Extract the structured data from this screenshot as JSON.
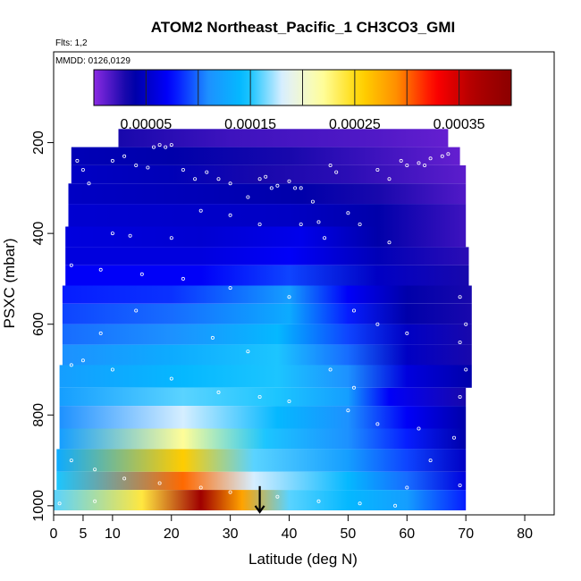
{
  "chart_data": {
    "type": "heatmap",
    "title": "ATOM2 Northeast_Pacific_1 CH3CO3_GMI",
    "flts_label": "Flts: 1,2",
    "mmdd_label": "MMDD: 0126,0129",
    "xlabel": "Latitude (deg N)",
    "ylabel": "PSXC (mbar)",
    "xlim": [
      0,
      85
    ],
    "ylim": [
      1020,
      0
    ],
    "x_ticks": [
      0,
      5,
      10,
      20,
      30,
      40,
      50,
      60,
      70,
      80
    ],
    "x_tick_labels": [
      "0",
      "5",
      "10",
      "20",
      "30",
      "40",
      "50",
      "60",
      "70",
      "80"
    ],
    "y_ticks": [
      200,
      400,
      600,
      800,
      1000
    ],
    "y_tick_labels": [
      "200",
      "400",
      "600",
      "800",
      "1000"
    ],
    "colorbar": {
      "min": 0.0,
      "max": 0.0004,
      "ticks": [
        5e-05,
        0.00015,
        0.00025,
        0.00035
      ],
      "tick_labels": [
        "0.00005",
        "0.00015",
        "0.00025",
        "0.00035"
      ],
      "colors": [
        "#8a2be2",
        "#0000a0",
        "#0000ff",
        "#1e90ff",
        "#00bfff",
        "#e0f0ff",
        "#ffffa0",
        "#ffd700",
        "#ff8c00",
        "#ff0000",
        "#b00000",
        "#8b0000"
      ]
    },
    "marker": {
      "latitude": 35,
      "pressure": 1000
    },
    "layers": [
      {
        "p_top": 170,
        "p_bot": 210,
        "lat_min": 11,
        "lat_max": 67,
        "values": [
          [
            11,
            3e-05
          ],
          [
            30,
            2e-05
          ],
          [
            55,
            1.5e-05
          ],
          [
            67,
            1e-05
          ]
        ]
      },
      {
        "p_top": 210,
        "p_bot": 250,
        "lat_min": 3,
        "lat_max": 69,
        "values": [
          [
            3,
            4.5e-05
          ],
          [
            20,
            4e-05
          ],
          [
            40,
            3e-05
          ],
          [
            55,
            2e-05
          ],
          [
            69,
            1e-05
          ]
        ]
      },
      {
        "p_top": 250,
        "p_bot": 290,
        "lat_min": 3,
        "lat_max": 70,
        "values": [
          [
            3,
            5e-05
          ],
          [
            20,
            4.5e-05
          ],
          [
            35,
            3e-05
          ],
          [
            50,
            2.5e-05
          ],
          [
            70,
            1.2e-05
          ]
        ]
      },
      {
        "p_top": 290,
        "p_bot": 335,
        "lat_min": 2.5,
        "lat_max": 70,
        "values": [
          [
            2.5,
            5e-05
          ],
          [
            25,
            4.5e-05
          ],
          [
            42,
            4e-05
          ],
          [
            55,
            3e-05
          ],
          [
            70,
            1.5e-05
          ]
        ]
      },
      {
        "p_top": 335,
        "p_bot": 385,
        "lat_min": 2.5,
        "lat_max": 70,
        "values": [
          [
            2.5,
            5.5e-05
          ],
          [
            25,
            5.2e-05
          ],
          [
            40,
            5e-05
          ],
          [
            55,
            4e-05
          ],
          [
            70,
            2e-05
          ]
        ]
      },
      {
        "p_top": 385,
        "p_bot": 430,
        "lat_min": 2,
        "lat_max": 70,
        "values": [
          [
            2,
            6e-05
          ],
          [
            25,
            5.5e-05
          ],
          [
            42,
            6.5e-05
          ],
          [
            55,
            4e-05
          ],
          [
            70,
            2e-05
          ]
        ]
      },
      {
        "p_top": 430,
        "p_bot": 470,
        "lat_min": 2,
        "lat_max": 70.5,
        "values": [
          [
            2,
            6e-05
          ],
          [
            25,
            6e-05
          ],
          [
            40,
            7e-05
          ],
          [
            55,
            4.5e-05
          ],
          [
            70.5,
            2.5e-05
          ]
        ]
      },
      {
        "p_top": 470,
        "p_bot": 515,
        "lat_min": 2,
        "lat_max": 70.5,
        "values": [
          [
            2,
            7e-05
          ],
          [
            25,
            7e-05
          ],
          [
            40,
            9e-05
          ],
          [
            55,
            5e-05
          ],
          [
            70.5,
            3e-05
          ]
        ]
      },
      {
        "p_top": 515,
        "p_bot": 555,
        "lat_min": 1.5,
        "lat_max": 71,
        "values": [
          [
            1.5,
            8e-05
          ],
          [
            20,
            8.5e-05
          ],
          [
            40,
            0.00012
          ],
          [
            50,
            7e-05
          ],
          [
            60,
            4e-05
          ],
          [
            71,
            3e-05
          ]
        ]
      },
      {
        "p_top": 555,
        "p_bot": 600,
        "lat_min": 1.5,
        "lat_max": 71,
        "values": [
          [
            1.5,
            9e-05
          ],
          [
            20,
            0.0001
          ],
          [
            40,
            0.00013
          ],
          [
            50,
            8e-05
          ],
          [
            60,
            4e-05
          ],
          [
            71,
            3e-05
          ]
        ]
      },
      {
        "p_top": 600,
        "p_bot": 645,
        "lat_min": 1.5,
        "lat_max": 71,
        "values": [
          [
            1.5,
            0.0001
          ],
          [
            20,
            0.00011
          ],
          [
            38,
            0.00014
          ],
          [
            50,
            9e-05
          ],
          [
            60,
            5e-05
          ],
          [
            71,
            3e-05
          ]
        ]
      },
      {
        "p_top": 645,
        "p_bot": 690,
        "lat_min": 1.5,
        "lat_max": 71,
        "values": [
          [
            1.5,
            0.00011
          ],
          [
            20,
            0.00013
          ],
          [
            38,
            0.00015
          ],
          [
            50,
            0.0001
          ],
          [
            60,
            5e-05
          ],
          [
            71,
            3e-05
          ]
        ]
      },
      {
        "p_top": 690,
        "p_bot": 740,
        "lat_min": 1,
        "lat_max": 71,
        "values": [
          [
            1,
            0.00012
          ],
          [
            22,
            0.00014
          ],
          [
            38,
            0.00015
          ],
          [
            50,
            0.00011
          ],
          [
            60,
            6e-05
          ],
          [
            71,
            4e-05
          ]
        ]
      },
      {
        "p_top": 740,
        "p_bot": 780,
        "lat_min": 1,
        "lat_max": 70,
        "values": [
          [
            1,
            0.00012
          ],
          [
            22,
            0.00016
          ],
          [
            38,
            0.00015
          ],
          [
            50,
            0.00012
          ],
          [
            57,
            7e-05
          ],
          [
            70,
            3e-05
          ]
        ]
      },
      {
        "p_top": 780,
        "p_bot": 830,
        "lat_min": 1,
        "lat_max": 70,
        "values": [
          [
            1,
            0.00011
          ],
          [
            22,
            0.00018
          ],
          [
            38,
            0.00014
          ],
          [
            50,
            0.00011
          ],
          [
            60,
            7e-05
          ],
          [
            70,
            4e-05
          ]
        ]
      },
      {
        "p_top": 830,
        "p_bot": 875,
        "lat_min": 1,
        "lat_max": 70,
        "values": [
          [
            1,
            0.00012
          ],
          [
            22,
            0.00022
          ],
          [
            36,
            0.00015
          ],
          [
            50,
            0.00011
          ],
          [
            60,
            8e-05
          ],
          [
            70,
            4e-05
          ]
        ]
      },
      {
        "p_top": 875,
        "p_bot": 925,
        "lat_min": 0.5,
        "lat_max": 70,
        "values": [
          [
            0.5,
            0.00013
          ],
          [
            22,
            0.00026
          ],
          [
            34,
            0.00016
          ],
          [
            50,
            0.00012
          ],
          [
            60,
            9e-05
          ],
          [
            70,
            5e-05
          ]
        ]
      },
      {
        "p_top": 925,
        "p_bot": 965,
        "lat_min": 0.5,
        "lat_max": 70,
        "values": [
          [
            0.5,
            0.00015
          ],
          [
            22,
            0.0003
          ],
          [
            34,
            0.00018
          ],
          [
            50,
            0.00014
          ],
          [
            60,
            0.0001
          ],
          [
            70,
            6e-05
          ]
        ]
      },
      {
        "p_top": 965,
        "p_bot": 1010,
        "lat_min": 0,
        "lat_max": 70,
        "values": [
          [
            0,
            0.00016
          ],
          [
            15,
            0.00024
          ],
          [
            25,
            0.00038
          ],
          [
            32,
            0.00028
          ],
          [
            40,
            0.00016
          ],
          [
            50,
            0.00014
          ],
          [
            60,
            0.00012
          ],
          [
            70,
            8e-05
          ]
        ]
      }
    ],
    "sample_points": [
      [
        1,
        995
      ],
      [
        4,
        240
      ],
      [
        5,
        260
      ],
      [
        6,
        290
      ],
      [
        7,
        990
      ],
      [
        10,
        240
      ],
      [
        12,
        230
      ],
      [
        14,
        250
      ],
      [
        16,
        255
      ],
      [
        17,
        210
      ],
      [
        18,
        205
      ],
      [
        19,
        210
      ],
      [
        20,
        205
      ],
      [
        22,
        260
      ],
      [
        24,
        280
      ],
      [
        26,
        265
      ],
      [
        28,
        280
      ],
      [
        30,
        290
      ],
      [
        33,
        320
      ],
      [
        35,
        280
      ],
      [
        36,
        275
      ],
      [
        37,
        300
      ],
      [
        38,
        295
      ],
      [
        40,
        285
      ],
      [
        41,
        300
      ],
      [
        42,
        300
      ],
      [
        44,
        330
      ],
      [
        46,
        410
      ],
      [
        47,
        250
      ],
      [
        48,
        265
      ],
      [
        50,
        355
      ],
      [
        52,
        380
      ],
      [
        55,
        260
      ],
      [
        57,
        280
      ],
      [
        59,
        240
      ],
      [
        60,
        250
      ],
      [
        62,
        245
      ],
      [
        63,
        250
      ],
      [
        64,
        235
      ],
      [
        66,
        230
      ],
      [
        67,
        225
      ],
      [
        10,
        400
      ],
      [
        13,
        405
      ],
      [
        20,
        410
      ],
      [
        25,
        350
      ],
      [
        30,
        360
      ],
      [
        35,
        380
      ],
      [
        42,
        380
      ],
      [
        45,
        375
      ],
      [
        57,
        420
      ],
      [
        3,
        470
      ],
      [
        8,
        480
      ],
      [
        15,
        490
      ],
      [
        22,
        500
      ],
      [
        30,
        520
      ],
      [
        40,
        540
      ],
      [
        51,
        570
      ],
      [
        55,
        600
      ],
      [
        60,
        620
      ],
      [
        69,
        640
      ],
      [
        5,
        680
      ],
      [
        10,
        700
      ],
      [
        20,
        720
      ],
      [
        28,
        750
      ],
      [
        35,
        760
      ],
      [
        40,
        770
      ],
      [
        50,
        790
      ],
      [
        55,
        820
      ],
      [
        62,
        830
      ],
      [
        68,
        850
      ],
      [
        3,
        900
      ],
      [
        7,
        920
      ],
      [
        12,
        940
      ],
      [
        18,
        950
      ],
      [
        25,
        960
      ],
      [
        30,
        970
      ],
      [
        38,
        980
      ],
      [
        45,
        990
      ],
      [
        52,
        995
      ],
      [
        58,
        1000
      ],
      [
        69,
        955
      ],
      [
        69,
        760
      ],
      [
        70,
        700
      ],
      [
        70,
        600
      ],
      [
        69,
        540
      ],
      [
        3,
        690
      ],
      [
        8,
        620
      ],
      [
        14,
        570
      ],
      [
        27,
        630
      ],
      [
        33,
        660
      ],
      [
        47,
        700
      ],
      [
        51,
        740
      ],
      [
        64,
        900
      ],
      [
        60,
        960
      ]
    ]
  }
}
